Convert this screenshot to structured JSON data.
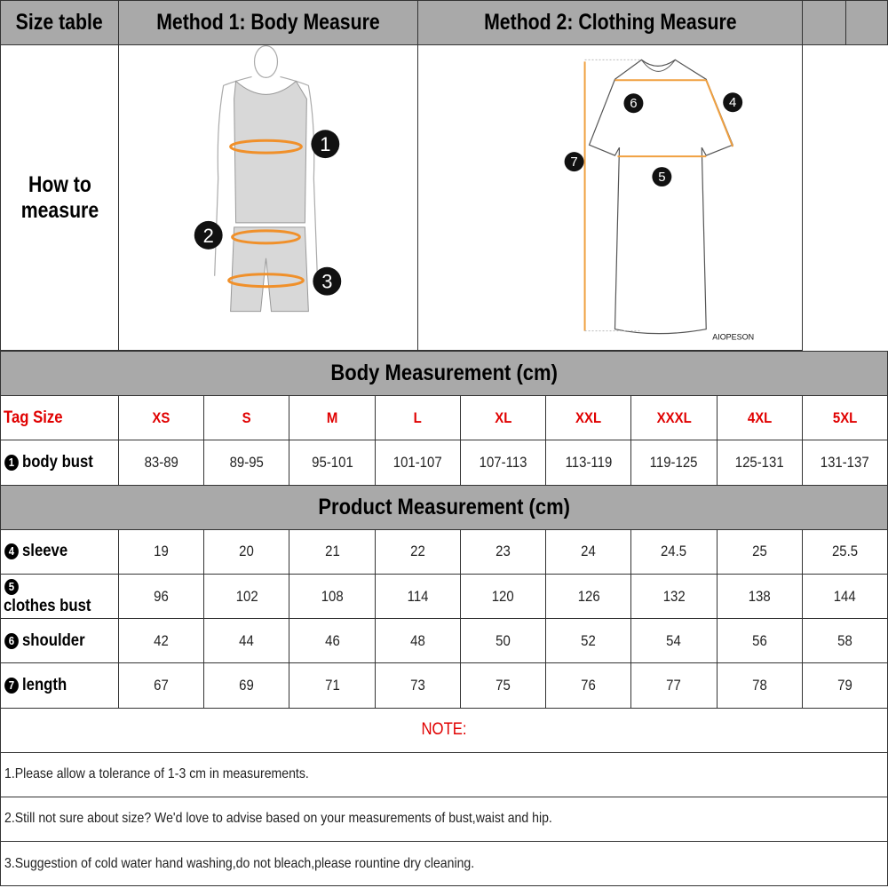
{
  "header": {
    "col1": "Size table",
    "method1": "Method 1: Body  Measure",
    "method2": "Method 2: Clothing Measure"
  },
  "how_to": "How to measure",
  "figure": {
    "body_markers": [
      "1",
      "2",
      "3"
    ],
    "shirt_markers": [
      "6",
      "4",
      "7",
      "5"
    ],
    "brand": "AIOPESON",
    "accent": "#f0a040"
  },
  "body_section": "Body Measurement (cm)",
  "tag_size_label": "Tag Size",
  "sizes": [
    "XS",
    "S",
    "M",
    "L",
    "XL",
    "XXL",
    "XXXL",
    "4XL",
    "5XL"
  ],
  "body_rows": [
    {
      "num": "1",
      "label": "body bust",
      "values": [
        "83-89",
        "89-95",
        "95-101",
        "101-107",
        "107-113",
        "113-119",
        "119-125",
        "125-131",
        "131-137"
      ]
    }
  ],
  "product_section": "Product Measurement (cm)",
  "product_rows": [
    {
      "num": "4",
      "label": "sleeve",
      "values": [
        "19",
        "20",
        "21",
        "22",
        "23",
        "24",
        "24.5",
        "25",
        "25.5"
      ]
    },
    {
      "num": "5",
      "label": "clothes bust",
      "values": [
        "96",
        "102",
        "108",
        "114",
        "120",
        "126",
        "132",
        "138",
        "144"
      ]
    },
    {
      "num": "6",
      "label": "shoulder",
      "values": [
        "42",
        "44",
        "46",
        "48",
        "50",
        "52",
        "54",
        "56",
        "58"
      ]
    },
    {
      "num": "7",
      "label": "length",
      "values": [
        "67",
        "69",
        "71",
        "73",
        "75",
        "76",
        "77",
        "78",
        "79"
      ]
    }
  ],
  "note_title": "NOTE:",
  "notes": [
    "1.Please allow a tolerance of 1-3 cm in measurements.",
    "2.Still not sure about size? We'd love to advise based on your measurements of bust,waist and hip.",
    "3.Suggestion of cold water hand washing,do not bleach,please rountine dry cleaning."
  ]
}
